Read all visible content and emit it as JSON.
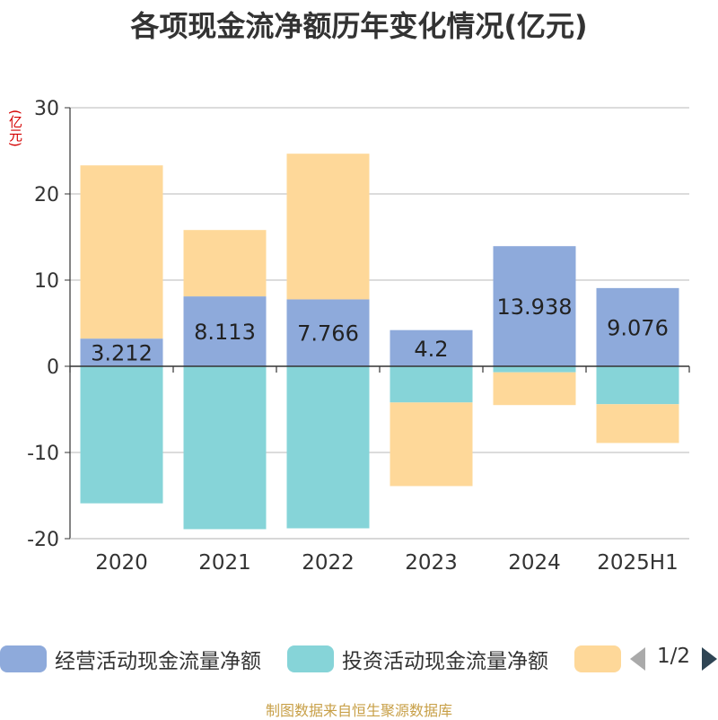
{
  "chart_data": {
    "type": "bar",
    "stacked": true,
    "title": "各项现金流净额历年变化情况(亿元)",
    "ylabel": "(亿元)",
    "xlabel": "",
    "categories": [
      "2020",
      "2021",
      "2022",
      "2023",
      "2024",
      "2025H1"
    ],
    "ylim": [
      -20,
      30
    ],
    "yticks": [
      -20,
      -10,
      0,
      10,
      20,
      30
    ],
    "grid": true,
    "series": [
      {
        "name": "经营活动现金流量净额",
        "color": "#8eaadb",
        "values": [
          3.212,
          8.113,
          7.766,
          4.2,
          13.938,
          9.076
        ],
        "labels": [
          "3.212",
          "8.113",
          "7.766",
          "4.2",
          "13.938",
          "9.076"
        ]
      },
      {
        "name": "投资活动现金流量净额",
        "color": "#86d4d8",
        "values": [
          -15.9,
          -18.9,
          -18.8,
          -4.2,
          -0.7,
          -4.4
        ]
      },
      {
        "name": "",
        "color": "#fed899",
        "values": [
          20.1,
          7.7,
          16.9,
          -9.7,
          -3.8,
          -4.5
        ]
      }
    ],
    "legend_position": "bottom"
  },
  "legend": {
    "items": [
      {
        "label": "经营活动现金流量净额",
        "color": "#8eaadb"
      },
      {
        "label": "投资活动现金流量净额",
        "color": "#86d4d8"
      },
      {
        "label": "",
        "color": "#fed899"
      }
    ],
    "pager_text": "1/2"
  },
  "source_text": "制图数据来自恒生聚源数据库"
}
